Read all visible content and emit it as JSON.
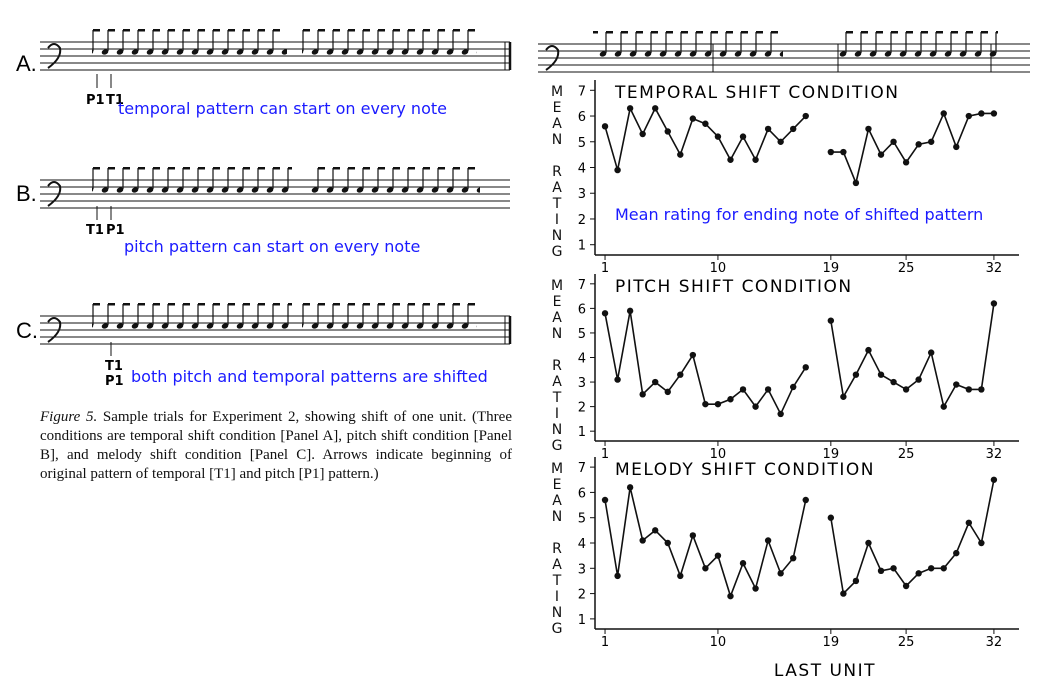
{
  "panels": [
    {
      "label": "A.",
      "markers": [
        "P1",
        "T1"
      ],
      "note": "temporal pattern can start on every note"
    },
    {
      "label": "B.",
      "markers": [
        "T1",
        "P1"
      ],
      "note": "pitch pattern can start on every note"
    },
    {
      "label": "C.",
      "markers": [
        "T1",
        "P1"
      ],
      "note": "both pitch and temporal patterns are shifted"
    }
  ],
  "caption": {
    "label": "Figure 5.",
    "text": "Sample trials for Experiment 2, showing shift of one unit. (Three conditions are temporal shift condition [Panel A], pitch shift condition [Panel B], and melody shift condition [Panel C]. Arrows indicate beginning of original pattern of temporal [T1] and pitch [P1] pattern.)"
  },
  "chart_data": [
    {
      "type": "line",
      "title": "TEMPORAL SHIFT CONDITION",
      "ylabel": "MEAN RATING",
      "annotation": "Mean rating for ending note of shifted pattern",
      "x": [
        1,
        2,
        3,
        4,
        5,
        6,
        7,
        8,
        9,
        10,
        11,
        12,
        13,
        14,
        15,
        16,
        17,
        18,
        19,
        20,
        21,
        22,
        23,
        24,
        25,
        26,
        27,
        28,
        29,
        30,
        31,
        32
      ],
      "values": [
        5.6,
        3.9,
        6.3,
        5.3,
        6.3,
        5.4,
        4.5,
        5.9,
        5.7,
        5.2,
        4.3,
        5.2,
        4.3,
        5.5,
        5.0,
        5.5,
        6.0,
        null,
        4.6,
        4.6,
        3.4,
        5.5,
        4.5,
        5.0,
        4.2,
        4.9,
        5.0,
        6.1,
        4.8,
        6.0,
        6.1,
        6.1
      ],
      "color": "#111",
      "xlim": [
        0.2,
        34
      ],
      "ylim": [
        0.6,
        7.4
      ],
      "xticks": [
        1,
        10,
        19,
        25,
        32
      ],
      "yticks": [
        1,
        2,
        3,
        4,
        5,
        6,
        7
      ]
    },
    {
      "type": "line",
      "title": "PITCH SHIFT CONDITION",
      "ylabel": "MEAN RATING",
      "x": [
        1,
        2,
        3,
        4,
        5,
        6,
        7,
        8,
        9,
        10,
        11,
        12,
        13,
        14,
        15,
        16,
        17,
        18,
        19,
        20,
        21,
        22,
        23,
        24,
        25,
        26,
        27,
        28,
        29,
        30,
        31,
        32
      ],
      "values": [
        5.8,
        3.1,
        5.9,
        2.5,
        3.0,
        2.6,
        3.3,
        4.1,
        2.1,
        2.1,
        2.3,
        2.7,
        2.0,
        2.7,
        1.7,
        2.8,
        3.6,
        null,
        5.5,
        2.4,
        3.3,
        4.3,
        3.3,
        3.0,
        2.7,
        3.1,
        4.2,
        2.0,
        2.9,
        2.7,
        2.7,
        6.2
      ],
      "color": "#111",
      "xlim": [
        0.2,
        34
      ],
      "ylim": [
        0.6,
        7.4
      ],
      "xticks": [
        1,
        10,
        19,
        25,
        32
      ],
      "yticks": [
        1,
        2,
        3,
        4,
        5,
        6,
        7
      ]
    },
    {
      "type": "line",
      "title": "MELODY SHIFT CONDITION",
      "ylabel": "MEAN RATING",
      "xlabel": "LAST UNIT",
      "x": [
        1,
        2,
        3,
        4,
        5,
        6,
        7,
        8,
        9,
        10,
        11,
        12,
        13,
        14,
        15,
        16,
        17,
        18,
        19,
        20,
        21,
        22,
        23,
        24,
        25,
        26,
        27,
        28,
        29,
        30,
        31,
        32
      ],
      "values": [
        5.7,
        2.7,
        6.2,
        4.1,
        4.5,
        4.0,
        2.7,
        4.3,
        3.0,
        3.5,
        1.9,
        3.2,
        2.2,
        4.1,
        2.8,
        3.4,
        5.7,
        null,
        5.0,
        2.0,
        2.5,
        4.0,
        2.9,
        3.0,
        2.3,
        2.8,
        3.0,
        3.0,
        3.6,
        4.8,
        4.0,
        6.5
      ],
      "color": "#111",
      "xlim": [
        0.2,
        34
      ],
      "ylim": [
        0.6,
        7.4
      ],
      "xticks": [
        1,
        10,
        19,
        25,
        32
      ],
      "yticks": [
        1,
        2,
        3,
        4,
        5,
        6,
        7
      ]
    }
  ]
}
